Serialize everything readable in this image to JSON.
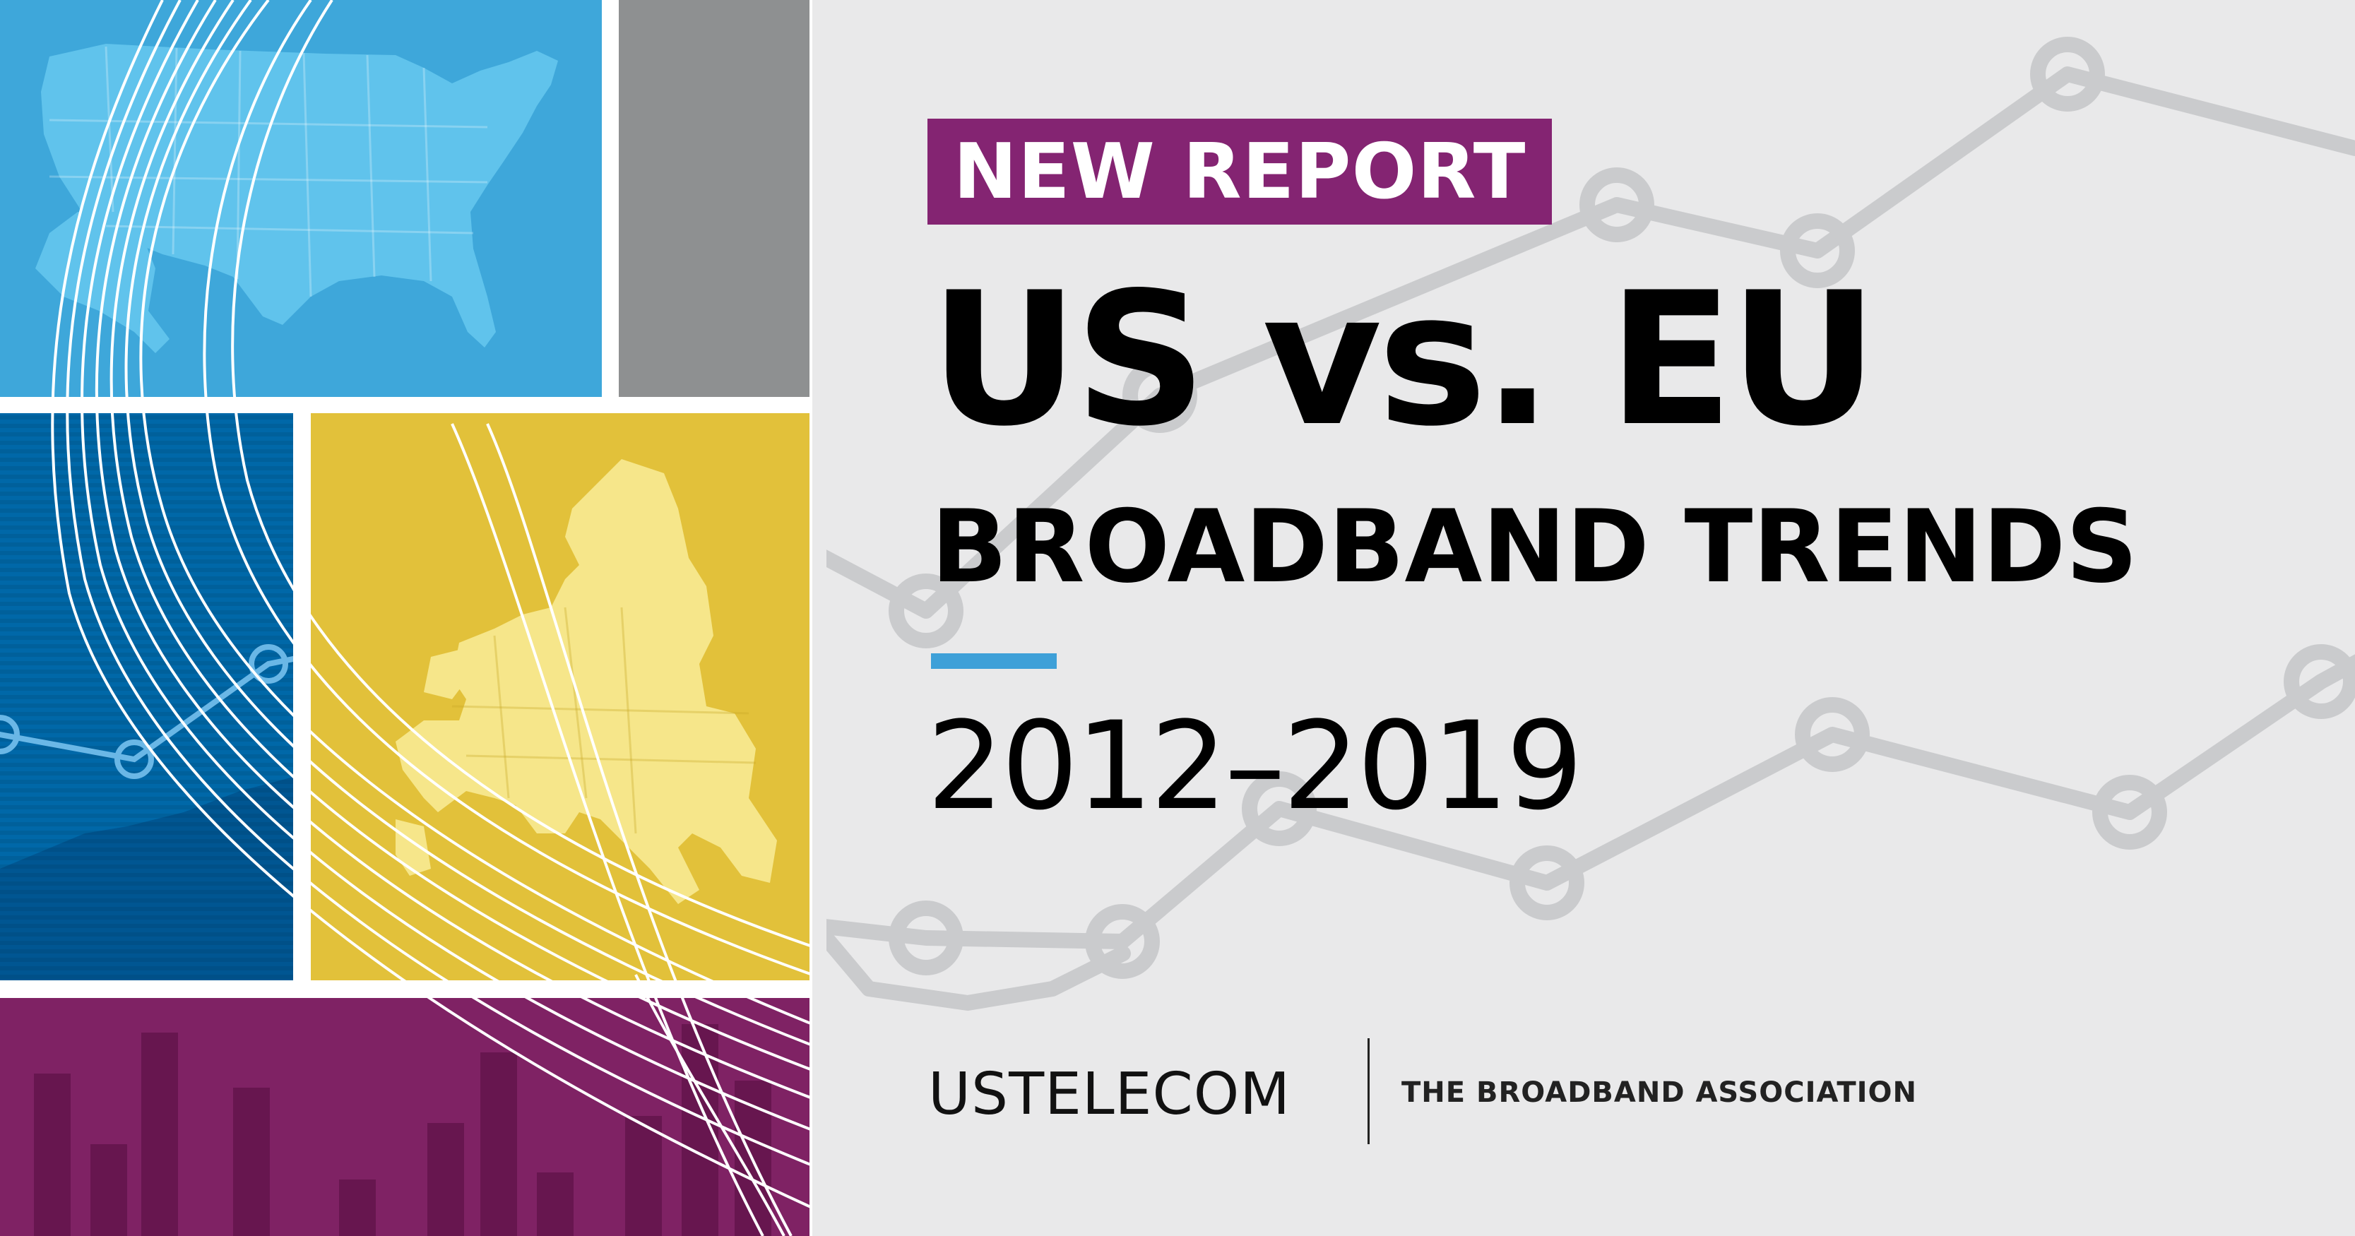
{
  "colors": {
    "blue_light": "#3ea7da",
    "blue_dark": "#0068a8",
    "gray_tile": "#8e9091",
    "yellow": "#e2c13a",
    "purple": "#7f2264",
    "badge": "#842472",
    "accent_rule": "#3ea0d8",
    "background": "#e9e9ea",
    "chart_line": "#cacbcd",
    "map_fill_us": "#60c3ec",
    "map_fill_eu": "#f6e68a"
  },
  "badge": {
    "label": "NEW REPORT"
  },
  "headline": {
    "title": "US vs. EU",
    "subtitle": "BROADBAND TRENDS",
    "years": "2012–2019"
  },
  "brand": {
    "logo_text": "USTELECOM",
    "tagline": "THE BROADBAND ASSOCIATION"
  },
  "icons": {
    "us_map": "us-map-icon",
    "eu_map": "eu-map-icon",
    "line_chart": "line-chart-icon",
    "bar_chart": "bar-chart-icon"
  }
}
